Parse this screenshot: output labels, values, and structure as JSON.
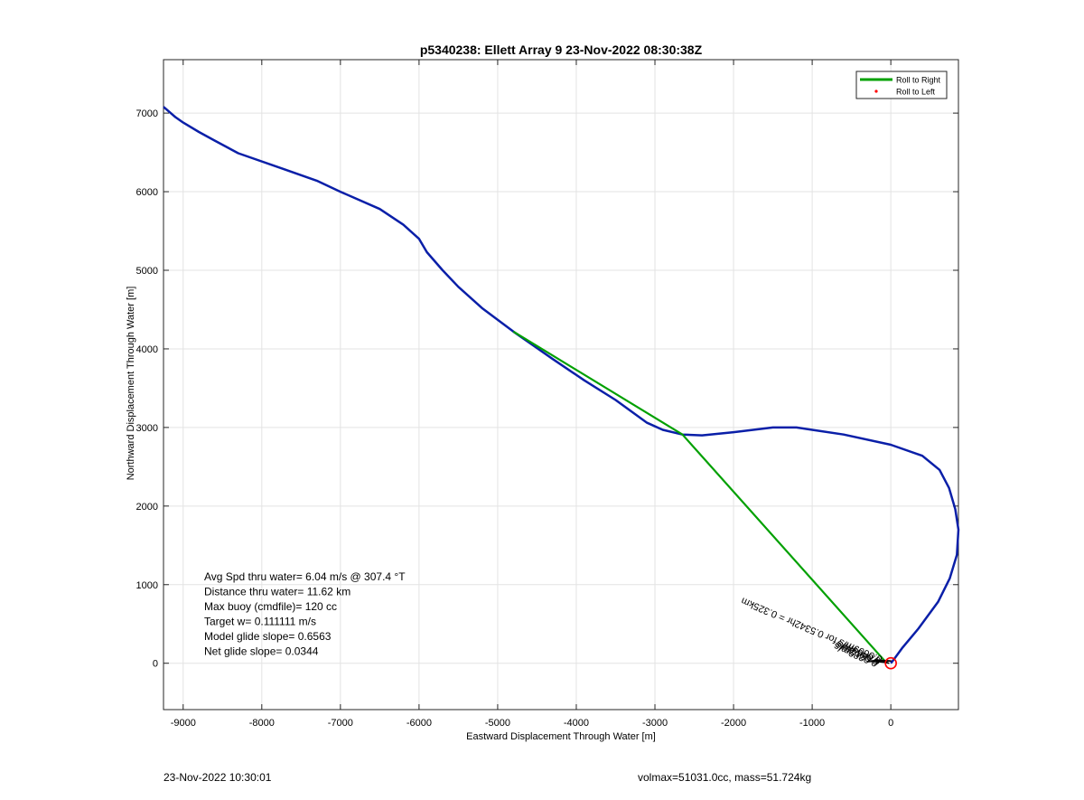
{
  "chart_data": {
    "type": "line",
    "title": "p5340238: Ellett Array 9 23-Nov-2022 08:30:38Z",
    "xlabel": "Eastward Displacement Through Water [m]",
    "ylabel": "Northward Displacement Through Water [m]",
    "xlim": [
      -9250,
      860
    ],
    "ylim": [
      -590,
      7680
    ],
    "xticks": [
      -9000,
      -8000,
      -7000,
      -6000,
      -5000,
      -4000,
      -3000,
      -2000,
      -1000,
      0
    ],
    "yticks": [
      0,
      1000,
      2000,
      3000,
      4000,
      5000,
      6000,
      7000
    ],
    "grid": true,
    "legend": {
      "placement": "top-right",
      "entries": [
        {
          "label": "Roll to Right",
          "color": "#00a000",
          "marker": "line"
        },
        {
          "label": "Roll to Left",
          "color": "#ff0000",
          "marker": "dot"
        }
      ]
    },
    "series": [
      {
        "color": "#0a1fa8",
        "points": [
          [
            0,
            0
          ],
          [
            40,
            50
          ],
          [
            150,
            200
          ],
          [
            350,
            440
          ],
          [
            600,
            780
          ],
          [
            750,
            1080
          ],
          [
            840,
            1380
          ],
          [
            860,
            1700
          ],
          [
            820,
            1960
          ],
          [
            740,
            2230
          ],
          [
            620,
            2460
          ],
          [
            400,
            2640
          ],
          [
            0,
            2780
          ],
          [
            -600,
            2910
          ],
          [
            -1000,
            2970
          ],
          [
            -1200,
            3000
          ],
          [
            -1500,
            3000
          ],
          [
            -2000,
            2940
          ],
          [
            -2400,
            2900
          ],
          [
            -2650,
            2910
          ],
          [
            -2900,
            2970
          ],
          [
            -3100,
            3060
          ],
          [
            -3500,
            3350
          ],
          [
            -3900,
            3600
          ],
          [
            -4300,
            3870
          ],
          [
            -4800,
            4220
          ],
          [
            -5200,
            4520
          ],
          [
            -5500,
            4790
          ],
          [
            -5700,
            5000
          ],
          [
            -5900,
            5230
          ],
          [
            -6000,
            5400
          ],
          [
            -6200,
            5580
          ],
          [
            -6500,
            5780
          ],
          [
            -7000,
            6000
          ],
          [
            -7300,
            6140
          ],
          [
            -7700,
            6280
          ],
          [
            -8300,
            6490
          ],
          [
            -8600,
            6650
          ],
          [
            -8800,
            6760
          ],
          [
            -9000,
            6880
          ],
          [
            -9100,
            6950
          ],
          [
            -9250,
            7080
          ]
        ]
      },
      {
        "name": "Roll to Right",
        "color": "#00a000",
        "points": [
          [
            -60,
            10
          ],
          [
            -2650,
            2910
          ],
          [
            -4800,
            4220
          ]
        ]
      },
      {
        "color": "#000000",
        "points": [
          [
            -300,
            20
          ],
          [
            -200,
            25
          ],
          [
            -100,
            18
          ],
          [
            0,
            30
          ],
          [
            -150,
            40
          ],
          [
            -250,
            30
          ],
          [
            -80,
            10
          ],
          [
            -20,
            0
          ]
        ]
      }
    ],
    "end_marker": {
      "x": 0,
      "y": 0,
      "color": "#ff0000"
    },
    "annotations": [
      {
        "text": "Avg Spd thru water=  6.04 m/s @ 307.4 °T"
      },
      {
        "text": "Distance thru water= 11.62 km"
      },
      {
        "text": "Max buoy (cmdfile)= 120 cc"
      },
      {
        "text": "Target w= 0.111111 m/s"
      },
      {
        "text": "Model glide slope= 0.6563"
      },
      {
        "text": "Net glide slope= 0.0344"
      }
    ],
    "rotated_labels": [
      {
        "text": "0.0609m/s for 0.5342hr = 0.325km",
        "x": -100,
        "y": 80,
        "angle": 203
      },
      {
        "text": "0.0469m/s",
        "x": -120,
        "y": 60,
        "angle": 203
      },
      {
        "text": "0.0512m/s",
        "x": -140,
        "y": 45,
        "angle": 203
      },
      {
        "text": "0.0389m/s",
        "x": -160,
        "y": 30,
        "angle": 203
      }
    ]
  },
  "footer": {
    "timestamp": "23-Nov-2022 10:30:01",
    "stats": "volmax=51031.0cc, mass=51.724kg"
  }
}
